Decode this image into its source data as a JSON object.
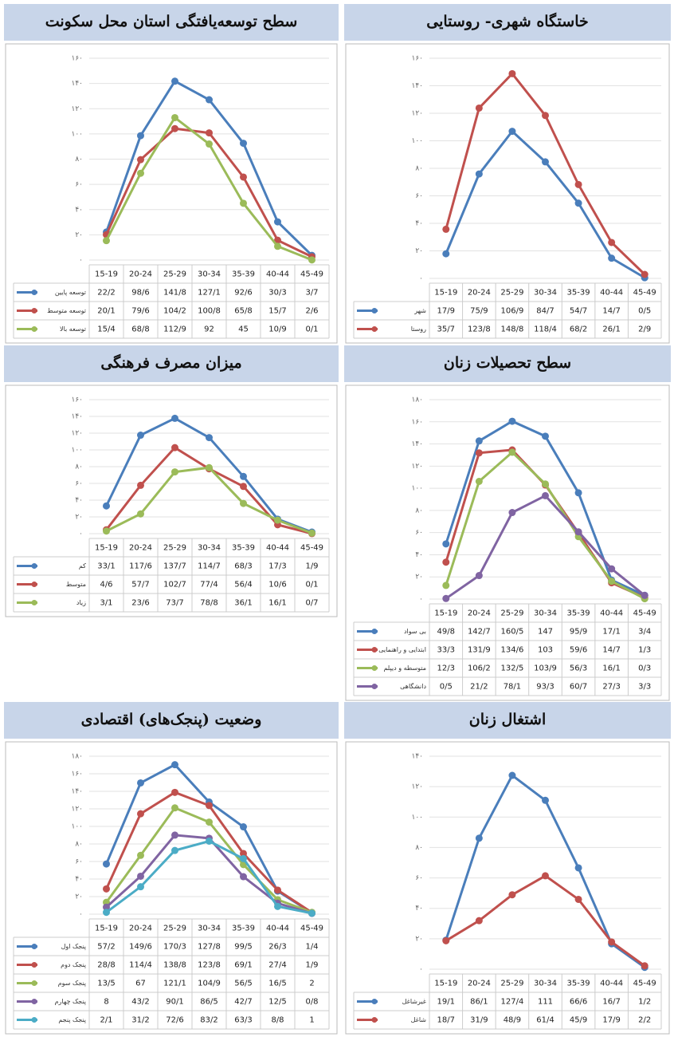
{
  "chart_data": [
    {
      "type": "line",
      "title": "خاستگاه شهری- روستایی",
      "categories": [
        "15-19",
        "20-24",
        "25-29",
        "30-34",
        "35-39",
        "40-44",
        "45-49"
      ],
      "ylim": [
        0,
        160
      ],
      "yticks": [
        {
          "value": 0,
          "label": "۰"
        },
        {
          "value": 20,
          "label": "۲۰"
        },
        {
          "value": 40,
          "label": "۴۰"
        },
        {
          "value": 60,
          "label": "۶۰"
        },
        {
          "value": 80,
          "label": "۸۰"
        },
        {
          "value": 100,
          "label": "۱۰۰"
        },
        {
          "value": 120,
          "label": "۱۲۰"
        },
        {
          "value": 140,
          "label": "۱۴۰"
        },
        {
          "value": 160,
          "label": "۱۶۰"
        }
      ],
      "grid": true,
      "series": [
        {
          "name": "شهر",
          "color": "#4a7ebb",
          "values": [
            17.9,
            75.9,
            106.9,
            84.7,
            54.7,
            14.7,
            0.5
          ],
          "value_labels": [
            "17/9",
            "75/9",
            "106/9",
            "84/7",
            "54/7",
            "14/7",
            "0/5"
          ]
        },
        {
          "name": "روستا",
          "color": "#c0504d",
          "values": [
            35.7,
            123.8,
            148.8,
            118.4,
            68.2,
            26.1,
            2.9
          ],
          "value_labels": [
            "35/7",
            "123/8",
            "148/8",
            "118/4",
            "68/2",
            "26/1",
            "2/9"
          ]
        }
      ]
    },
    {
      "type": "line",
      "title": "سطح توسعه‌یافتگی استان محل سکونت",
      "categories": [
        "15-19",
        "20-24",
        "25-29",
        "30-34",
        "35-39",
        "40-44",
        "45-49"
      ],
      "ylim": [
        0,
        160
      ],
      "yticks": [
        {
          "value": 0,
          "label": "۰"
        },
        {
          "value": 20,
          "label": "۲۰"
        },
        {
          "value": 40,
          "label": "۴۰"
        },
        {
          "value": 60,
          "label": "۶۰"
        },
        {
          "value": 80,
          "label": "۸۰"
        },
        {
          "value": 100,
          "label": "۱۰۰"
        },
        {
          "value": 120,
          "label": "۱۲۰"
        },
        {
          "value": 140,
          "label": "۱۴۰"
        },
        {
          "value": 160,
          "label": "۱۶۰"
        }
      ],
      "grid": true,
      "series": [
        {
          "name": "توسعه پایین",
          "color": "#4a7ebb",
          "values": [
            22.2,
            98.6,
            141.8,
            127.1,
            92.6,
            30.3,
            3.7
          ],
          "value_labels": [
            "22/2",
            "98/6",
            "141/8",
            "127/1",
            "92/6",
            "30/3",
            "3/7"
          ]
        },
        {
          "name": "توسعه متوسط",
          "color": "#c0504d",
          "values": [
            20.1,
            79.6,
            104.2,
            100.8,
            65.8,
            15.7,
            2.6
          ],
          "value_labels": [
            "20/1",
            "79/6",
            "104/2",
            "100/8",
            "65/8",
            "15/7",
            "2/6"
          ]
        },
        {
          "name": "توسعه بالا",
          "color": "#9bbb59",
          "values": [
            15.4,
            68.8,
            112.9,
            92,
            45,
            10.9,
            0.1
          ],
          "value_labels": [
            "15/4",
            "68/8",
            "112/9",
            "92",
            "45",
            "10/9",
            "0/1"
          ]
        }
      ]
    },
    {
      "type": "line",
      "title": "سطح تحصیلات زنان",
      "categories": [
        "15-19",
        "20-24",
        "25-29",
        "30-34",
        "35-39",
        "40-44",
        "45-49"
      ],
      "ylim": [
        0,
        180
      ],
      "yticks": [
        {
          "value": 0,
          "label": "۰"
        },
        {
          "value": 20,
          "label": "۲۰"
        },
        {
          "value": 40,
          "label": "۴۰"
        },
        {
          "value": 60,
          "label": "۶۰"
        },
        {
          "value": 80,
          "label": "۸۰"
        },
        {
          "value": 100,
          "label": "۱۰۰"
        },
        {
          "value": 120,
          "label": "۱۲۰"
        },
        {
          "value": 140,
          "label": "۱۴۰"
        },
        {
          "value": 160,
          "label": "۱۶۰"
        },
        {
          "value": 180,
          "label": "۱۸۰"
        }
      ],
      "grid": true,
      "series": [
        {
          "name": "بی سواد",
          "color": "#4a7ebb",
          "values": [
            49.8,
            142.7,
            160.5,
            147,
            95.9,
            17.1,
            3.4
          ],
          "value_labels": [
            "49/8",
            "142/7",
            "160/5",
            "147",
            "95/9",
            "17/1",
            "3/4"
          ]
        },
        {
          "name": "ابتدایی و راهنمایی",
          "color": "#c0504d",
          "values": [
            33.3,
            131.9,
            134.6,
            103,
            59.6,
            14.7,
            1.3
          ],
          "value_labels": [
            "33/3",
            "131/9",
            "134/6",
            "103",
            "59/6",
            "14/7",
            "1/3"
          ]
        },
        {
          "name": "متوسطه و دیپلم",
          "color": "#9bbb59",
          "values": [
            12.3,
            106.2,
            132.5,
            103.9,
            56.3,
            16.1,
            0.3
          ],
          "value_labels": [
            "12/3",
            "106/2",
            "132/5",
            "103/9",
            "56/3",
            "16/1",
            "0/3"
          ]
        },
        {
          "name": "دانشگاهی",
          "color": "#8064a2",
          "values": [
            0.5,
            21.2,
            78.1,
            93.3,
            60.7,
            27.3,
            3.3
          ],
          "value_labels": [
            "0/5",
            "21/2",
            "78/1",
            "93/3",
            "60/7",
            "27/3",
            "3/3"
          ]
        }
      ]
    },
    {
      "type": "line",
      "title": "میزان مصرف فرهنگی",
      "categories": [
        "15-19",
        "20-24",
        "25-29",
        "30-34",
        "35-39",
        "40-44",
        "45-49"
      ],
      "ylim": [
        0,
        160
      ],
      "yticks": [
        {
          "value": 0,
          "label": "۰"
        },
        {
          "value": 20,
          "label": "۲۰"
        },
        {
          "value": 40,
          "label": "۴۰"
        },
        {
          "value": 60,
          "label": "۶۰"
        },
        {
          "value": 80,
          "label": "۸۰"
        },
        {
          "value": 100,
          "label": "۱۰۰"
        },
        {
          "value": 120,
          "label": "۱۲۰"
        },
        {
          "value": 140,
          "label": "۱۴۰"
        },
        {
          "value": 160,
          "label": "۱۶۰"
        }
      ],
      "grid": true,
      "series": [
        {
          "name": "کم",
          "color": "#4a7ebb",
          "values": [
            33.1,
            117.6,
            137.7,
            114.7,
            68.3,
            17.3,
            1.9
          ],
          "value_labels": [
            "33/1",
            "117/6",
            "137/7",
            "114/7",
            "68/3",
            "17/3",
            "1/9"
          ]
        },
        {
          "name": "متوسط",
          "color": "#c0504d",
          "values": [
            4.6,
            57.7,
            102.7,
            77.4,
            56.4,
            10.6,
            0.1
          ],
          "value_labels": [
            "4/6",
            "57/7",
            "102/7",
            "77/4",
            "56/4",
            "10/6",
            "0/1"
          ]
        },
        {
          "name": "زیاد",
          "color": "#9bbb59",
          "values": [
            3.1,
            23.6,
            73.7,
            78.8,
            36.1,
            16.1,
            0.7
          ],
          "value_labels": [
            "3/1",
            "23/6",
            "73/7",
            "78/8",
            "36/1",
            "16/1",
            "0/7"
          ]
        }
      ]
    },
    {
      "type": "line",
      "title": "اشتغال زنان",
      "categories": [
        "15-19",
        "20-24",
        "25-29",
        "30-34",
        "35-39",
        "40-44",
        "45-49"
      ],
      "ylim": [
        0,
        140
      ],
      "yticks": [
        {
          "value": 0,
          "label": "۰"
        },
        {
          "value": 20,
          "label": "۲۰"
        },
        {
          "value": 40,
          "label": "۴۰"
        },
        {
          "value": 60,
          "label": "۶۰"
        },
        {
          "value": 80,
          "label": "۸۰"
        },
        {
          "value": 100,
          "label": "۱۰۰"
        },
        {
          "value": 120,
          "label": "۱۲۰"
        },
        {
          "value": 140,
          "label": "۱۴۰"
        }
      ],
      "grid": true,
      "series": [
        {
          "name": "غیرشاغل",
          "color": "#4a7ebb",
          "values": [
            19.1,
            86.1,
            127.4,
            111,
            66.6,
            16.7,
            1.2
          ],
          "value_labels": [
            "19/1",
            "86/1",
            "127/4",
            "111",
            "66/6",
            "16/7",
            "1/2"
          ]
        },
        {
          "name": "شاغل",
          "color": "#c0504d",
          "values": [
            18.7,
            31.9,
            48.9,
            61.4,
            45.9,
            17.9,
            2.2
          ],
          "value_labels": [
            "18/7",
            "31/9",
            "48/9",
            "61/4",
            "45/9",
            "17/9",
            "2/2"
          ]
        }
      ]
    },
    {
      "type": "line",
      "title": "وضعیت (پنجک‌های) اقتصادی",
      "categories": [
        "15-19",
        "20-24",
        "25-29",
        "30-34",
        "35-39",
        "40-44",
        "45-49"
      ],
      "ylim": [
        0,
        180
      ],
      "yticks": [
        {
          "value": 0,
          "label": "۰"
        },
        {
          "value": 20,
          "label": "۲۰"
        },
        {
          "value": 40,
          "label": "۴۰"
        },
        {
          "value": 60,
          "label": "۶۰"
        },
        {
          "value": 80,
          "label": "۸۰"
        },
        {
          "value": 100,
          "label": "۱۰۰"
        },
        {
          "value": 120,
          "label": "۱۲۰"
        },
        {
          "value": 140,
          "label": "۱۴۰"
        },
        {
          "value": 160,
          "label": "۱۶۰"
        },
        {
          "value": 180,
          "label": "۱۸۰"
        }
      ],
      "grid": true,
      "series": [
        {
          "name": "پنجک اول",
          "color": "#4a7ebb",
          "values": [
            57.2,
            149.6,
            170.3,
            127.8,
            99.5,
            26.3,
            1.4
          ],
          "value_labels": [
            "57/2",
            "149/6",
            "170/3",
            "127/8",
            "99/5",
            "26/3",
            "1/4"
          ]
        },
        {
          "name": "پنجک دوم",
          "color": "#c0504d",
          "values": [
            28.8,
            114.4,
            138.8,
            123.8,
            69.1,
            27.4,
            1.9
          ],
          "value_labels": [
            "28/8",
            "114/4",
            "138/8",
            "123/8",
            "69/1",
            "27/4",
            "1/9"
          ]
        },
        {
          "name": "پنجک سوم",
          "color": "#9bbb59",
          "values": [
            13.5,
            67,
            121.1,
            104.9,
            56.5,
            16.5,
            2
          ],
          "value_labels": [
            "13/5",
            "67",
            "121/1",
            "104/9",
            "56/5",
            "16/5",
            "2"
          ]
        },
        {
          "name": "پنجک چهارم",
          "color": "#8064a2",
          "values": [
            8,
            43.2,
            90.1,
            86.5,
            42.7,
            12.5,
            0.8
          ],
          "value_labels": [
            "8",
            "43/2",
            "90/1",
            "86/5",
            "42/7",
            "12/5",
            "0/8"
          ]
        },
        {
          "name": "پنجک پنجم",
          "color": "#4bacc6",
          "values": [
            2.1,
            31.2,
            72.6,
            83.2,
            63.3,
            8.8,
            1
          ],
          "value_labels": [
            "2/1",
            "31/2",
            "72/6",
            "83/2",
            "63/3",
            "8/8",
            "1"
          ]
        }
      ]
    }
  ]
}
